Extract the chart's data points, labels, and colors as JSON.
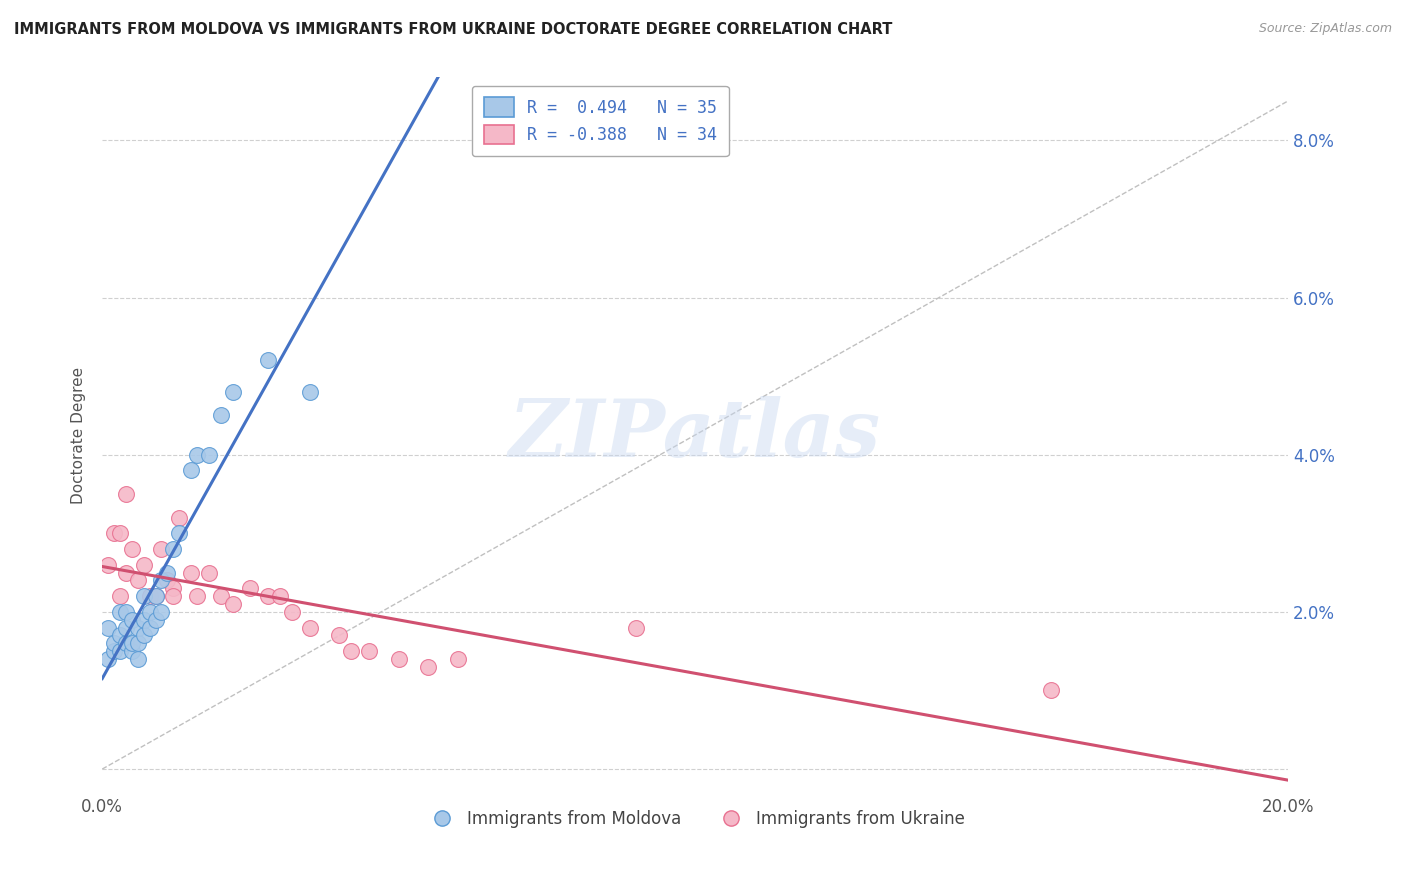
{
  "title": "IMMIGRANTS FROM MOLDOVA VS IMMIGRANTS FROM UKRAINE DOCTORATE DEGREE CORRELATION CHART",
  "source": "Source: ZipAtlas.com",
  "ylabel": "Doctorate Degree",
  "xlim": [
    0.0,
    0.2
  ],
  "ylim": [
    -0.003,
    0.088
  ],
  "xticks": [
    0.0,
    0.02,
    0.04,
    0.06,
    0.08,
    0.1,
    0.12,
    0.14,
    0.16,
    0.18,
    0.2
  ],
  "yticks": [
    0.0,
    0.02,
    0.04,
    0.06,
    0.08
  ],
  "yticklabels_right": [
    "",
    "2.0%",
    "4.0%",
    "6.0%",
    "8.0%"
  ],
  "moldova_color": "#a8c8e8",
  "ukraine_color": "#f5b8c8",
  "moldova_edge": "#5b9bd5",
  "ukraine_edge": "#e87090",
  "legend1_label": "R =  0.494   N = 35",
  "legend2_label": "R = -0.388   N = 34",
  "diagonal_color": "#c0c0c0",
  "moldova_line_color": "#4472c4",
  "ukraine_line_color": "#d05070",
  "background_color": "#ffffff",
  "grid_color": "#d0d0d0",
  "moldova_x": [
    0.001,
    0.001,
    0.002,
    0.002,
    0.003,
    0.003,
    0.003,
    0.004,
    0.004,
    0.004,
    0.005,
    0.005,
    0.005,
    0.006,
    0.006,
    0.006,
    0.007,
    0.007,
    0.007,
    0.008,
    0.008,
    0.009,
    0.009,
    0.01,
    0.01,
    0.011,
    0.012,
    0.013,
    0.015,
    0.016,
    0.018,
    0.02,
    0.022,
    0.028,
    0.035
  ],
  "moldova_y": [
    0.014,
    0.018,
    0.015,
    0.016,
    0.015,
    0.017,
    0.02,
    0.016,
    0.018,
    0.02,
    0.015,
    0.016,
    0.019,
    0.014,
    0.016,
    0.018,
    0.017,
    0.019,
    0.022,
    0.018,
    0.02,
    0.019,
    0.022,
    0.02,
    0.024,
    0.025,
    0.028,
    0.03,
    0.038,
    0.04,
    0.04,
    0.045,
    0.048,
    0.052,
    0.048
  ],
  "ukraine_x": [
    0.001,
    0.002,
    0.003,
    0.003,
    0.004,
    0.004,
    0.005,
    0.006,
    0.007,
    0.008,
    0.009,
    0.01,
    0.011,
    0.012,
    0.012,
    0.013,
    0.015,
    0.016,
    0.018,
    0.02,
    0.022,
    0.025,
    0.028,
    0.03,
    0.032,
    0.035,
    0.04,
    0.042,
    0.045,
    0.05,
    0.055,
    0.06,
    0.09,
    0.16
  ],
  "ukraine_y": [
    0.026,
    0.03,
    0.022,
    0.03,
    0.025,
    0.035,
    0.028,
    0.024,
    0.026,
    0.022,
    0.022,
    0.028,
    0.024,
    0.023,
    0.022,
    0.032,
    0.025,
    0.022,
    0.025,
    0.022,
    0.021,
    0.023,
    0.022,
    0.022,
    0.02,
    0.018,
    0.017,
    0.015,
    0.015,
    0.014,
    0.013,
    0.014,
    0.018,
    0.01
  ]
}
